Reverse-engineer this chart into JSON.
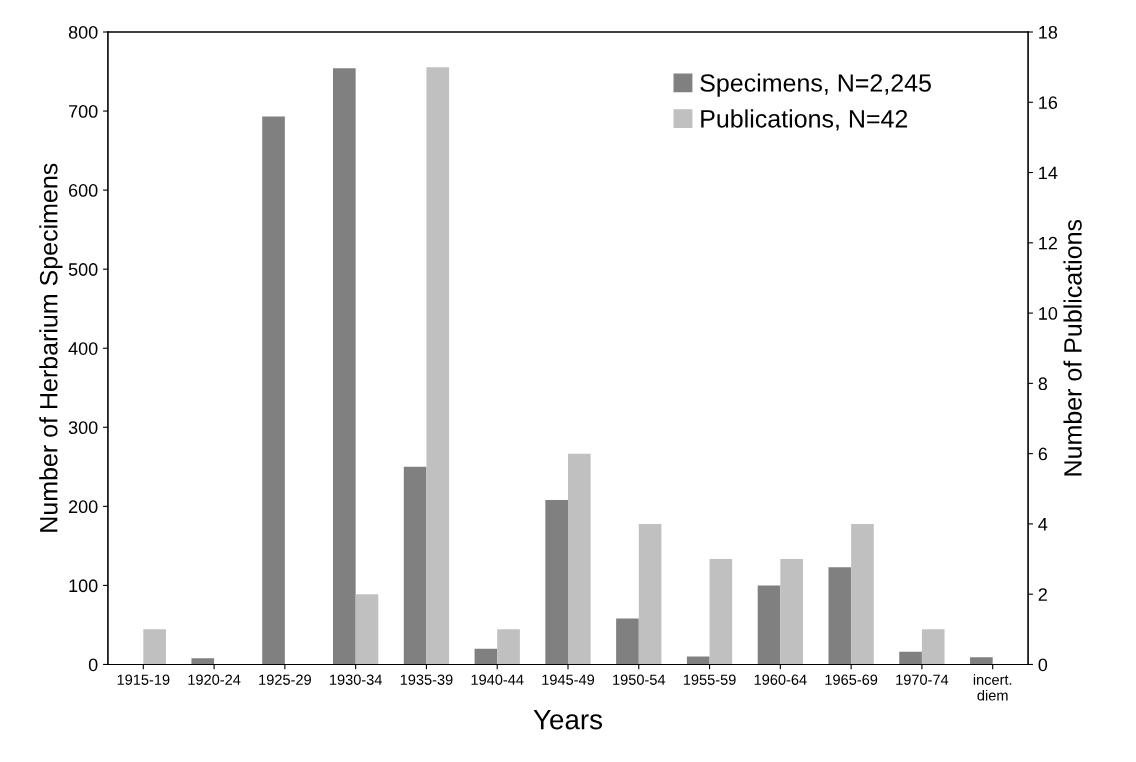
{
  "chart_data": {
    "type": "bar",
    "categories": [
      "1915-19",
      "1920-24",
      "1925-29",
      "1930-34",
      "1935-39",
      "1940-44",
      "1945-49",
      "1950-54",
      "1955-59",
      "1960-64",
      "1965-69",
      "1970-74",
      "incert.\ndiem"
    ],
    "series": [
      {
        "name": "Specimens, N=2,245",
        "color": "#808080",
        "values": [
          0,
          8,
          693,
          754,
          250,
          20,
          208,
          58,
          10,
          100,
          123,
          16,
          9
        ]
      },
      {
        "name": "Publications, N=42",
        "color": "#c0c0c0",
        "axis": "y2",
        "values": [
          1,
          0,
          0,
          2,
          17,
          1,
          6,
          4,
          3,
          3,
          4,
          1,
          0
        ]
      }
    ],
    "xlabel": "Years",
    "ylabel": "Number of Herbarium Specimens",
    "y2label": "Number of Publications",
    "ylim": [
      0,
      800
    ],
    "yticks": [
      0,
      100,
      200,
      300,
      400,
      500,
      600,
      700,
      800
    ],
    "y2lim": [
      0,
      18
    ],
    "y2ticks": [
      0,
      2,
      4,
      6,
      8,
      10,
      12,
      14,
      16,
      18
    ],
    "grid": false,
    "legend": "top right"
  }
}
